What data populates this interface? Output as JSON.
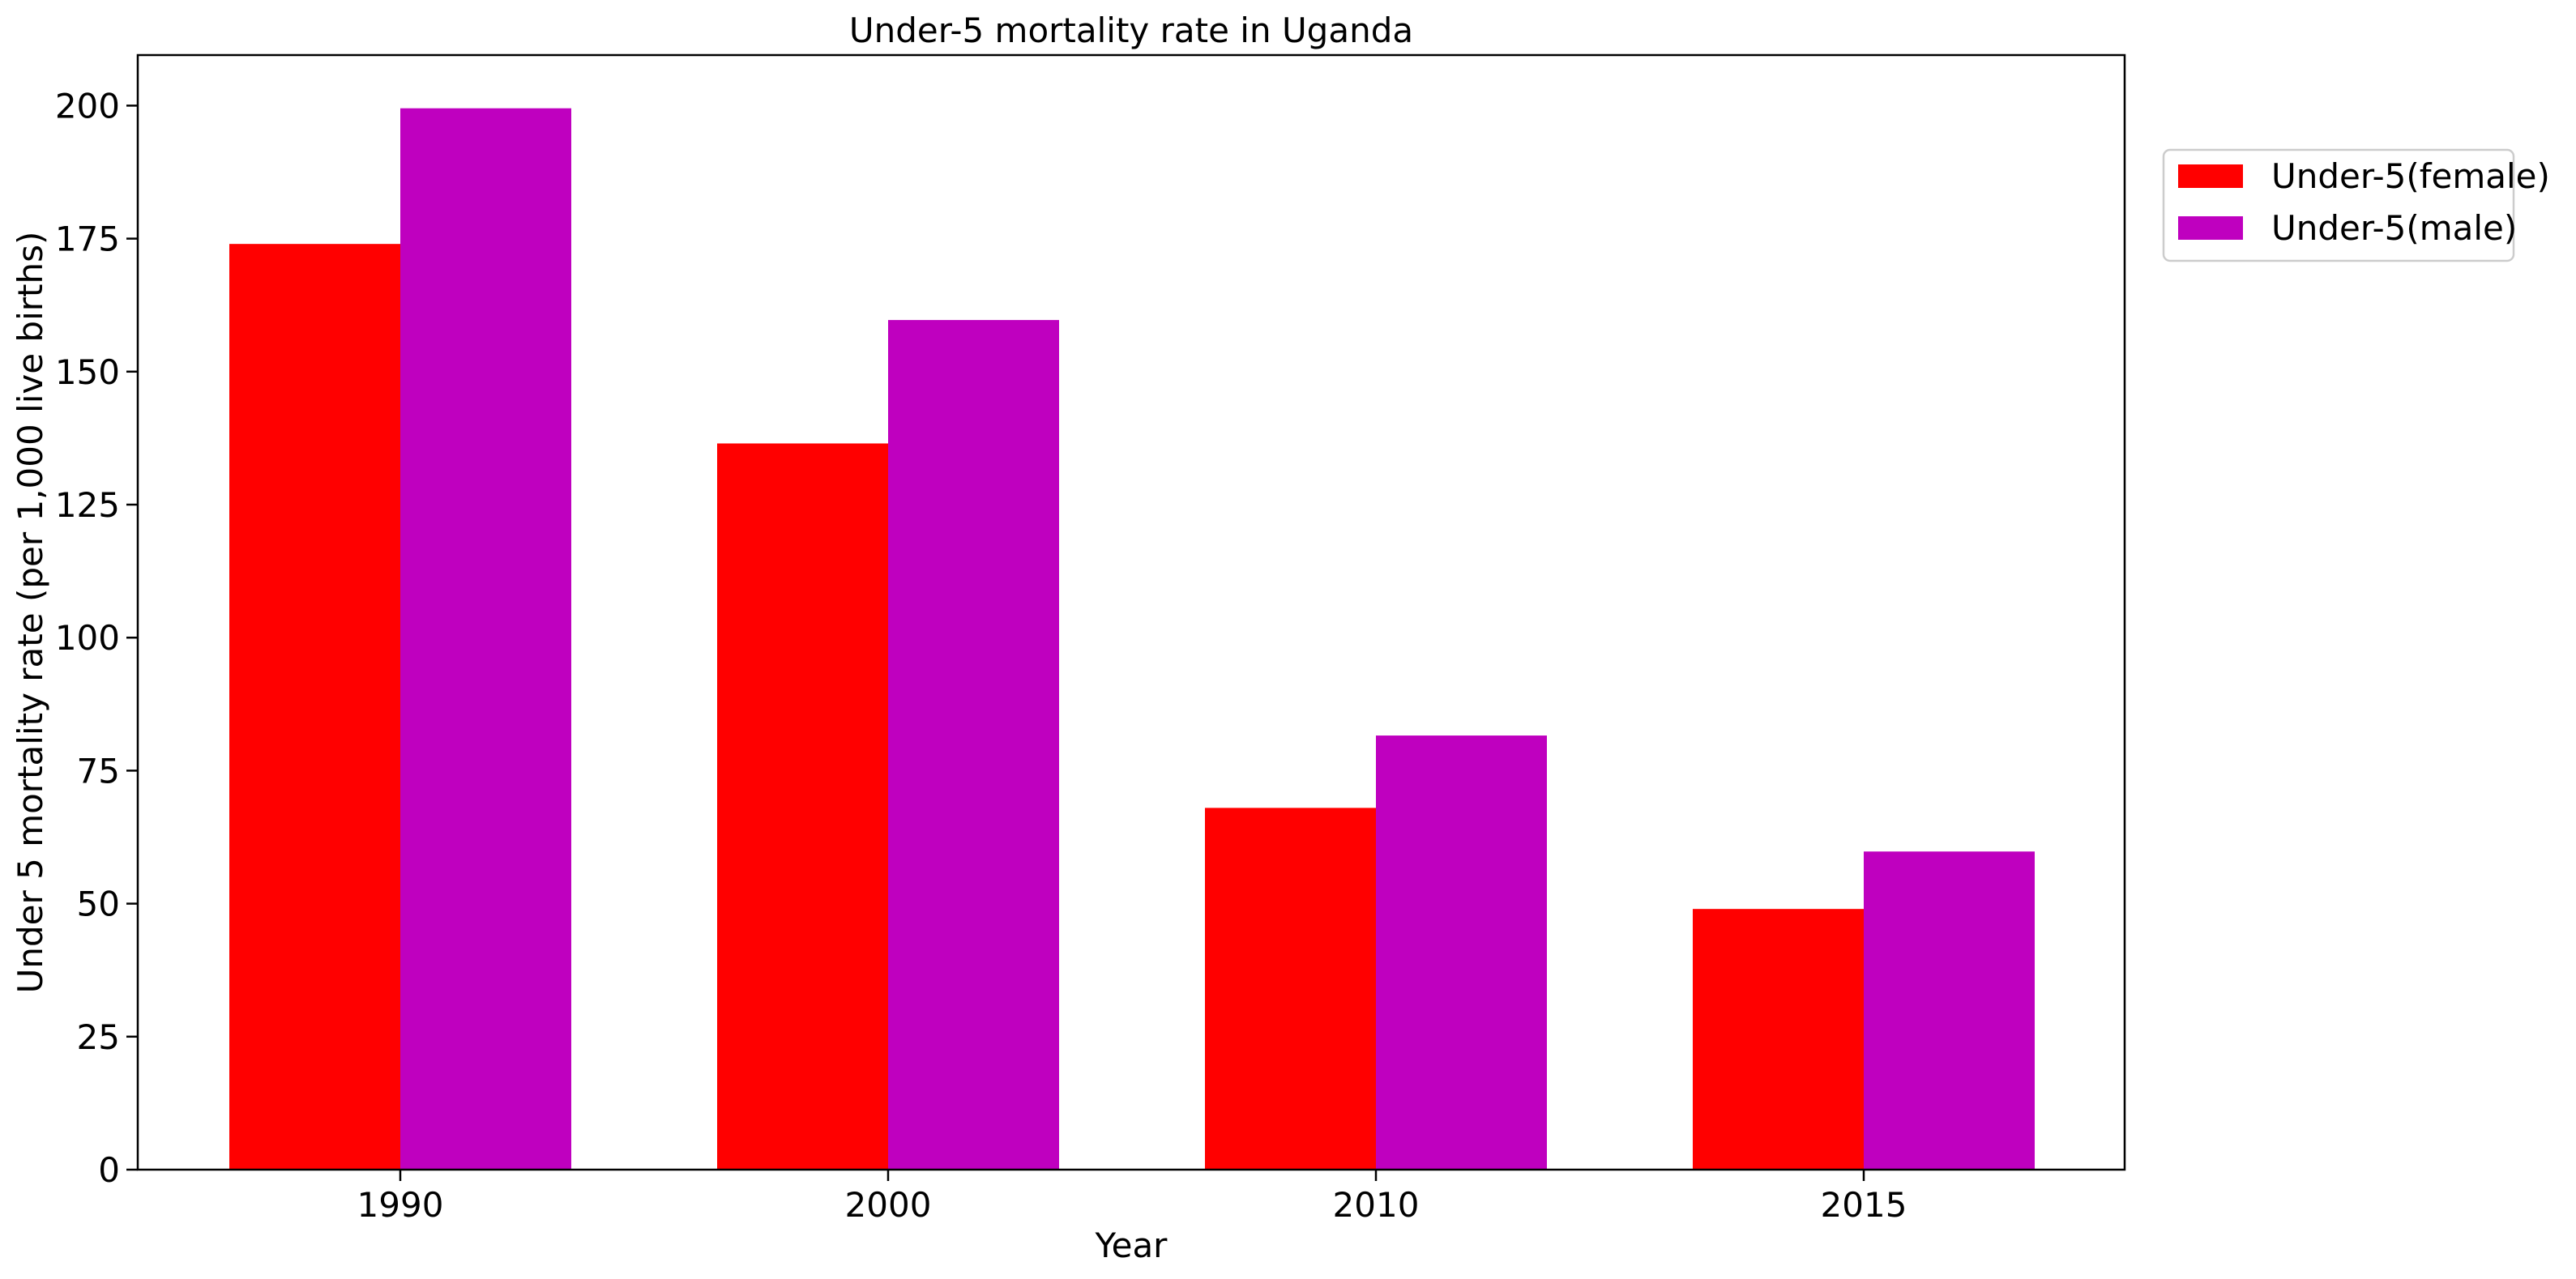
{
  "chart_data": {
    "type": "bar",
    "title": "Under-5 mortality rate in Uganda",
    "xlabel": "Year",
    "ylabel": "Under 5 mortality rate (per 1,000 live births)",
    "categories": [
      "1990",
      "2000",
      "2010",
      "2015"
    ],
    "series": [
      {
        "name": "Under-5(female)",
        "color": "#ff0000",
        "values": [
          174.0,
          136.5,
          68.0,
          49.0
        ]
      },
      {
        "name": "Under-5(male)",
        "color": "#bf00bf",
        "values": [
          199.5,
          159.7,
          81.6,
          59.8
        ]
      }
    ],
    "ylim": [
      0,
      209.5
    ],
    "yticks": [
      "0",
      "25",
      "50",
      "75",
      "100",
      "125",
      "150",
      "175",
      "200"
    ],
    "grid": false,
    "legend_position": "outside-top-right"
  }
}
